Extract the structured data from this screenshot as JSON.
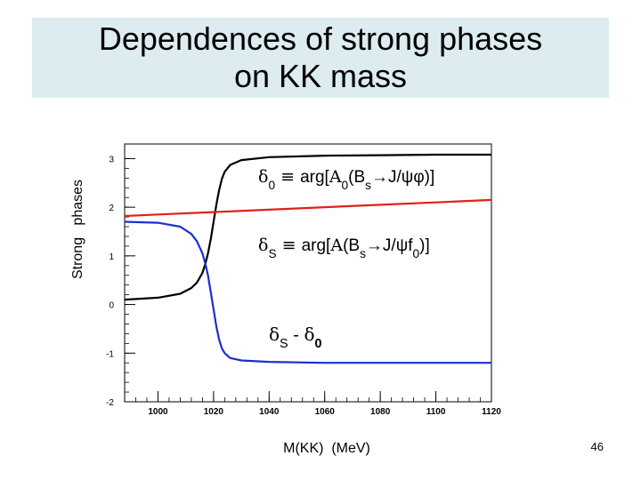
{
  "slide": {
    "title_line1": "Dependences of strong phases",
    "title_line2": "on KK mass",
    "page_number": "46"
  },
  "chart_data": {
    "type": "line",
    "ylabel": "Strong   phases",
    "xlabel": "M(KK)  (MeV)",
    "xlim": [
      988,
      1120
    ],
    "ylim": [
      -2,
      3.3
    ],
    "xticks": [
      "1000",
      "1020",
      "1040",
      "1060",
      "1080",
      "1100",
      "1120"
    ],
    "yticks": [
      "-2",
      "-1",
      "0",
      "1",
      "2",
      "3"
    ],
    "colors": {
      "black": "#000000",
      "red": "#e0201a",
      "blue": "#1a2fd0"
    },
    "series": [
      {
        "color_key": "black",
        "x": [
          988,
          1000,
          1008,
          1012,
          1014,
          1016,
          1017,
          1018,
          1019,
          1020,
          1021,
          1022,
          1023,
          1024,
          1026,
          1030,
          1040,
          1060,
          1080,
          1100,
          1120
        ],
        "y": [
          0.1,
          0.14,
          0.22,
          0.34,
          0.45,
          0.65,
          0.83,
          1.05,
          1.35,
          1.7,
          2.05,
          2.35,
          2.58,
          2.73,
          2.87,
          2.97,
          3.03,
          3.06,
          3.07,
          3.08,
          3.08
        ]
      },
      {
        "color_key": "red",
        "x": [
          988,
          1000,
          1020,
          1040,
          1060,
          1080,
          1100,
          1120
        ],
        "y": [
          1.82,
          1.85,
          1.9,
          1.95,
          2.0,
          2.05,
          2.1,
          2.15
        ]
      },
      {
        "color_key": "blue",
        "x": [
          988,
          1000,
          1008,
          1012,
          1014,
          1016,
          1017,
          1018,
          1019,
          1020,
          1021,
          1022,
          1023,
          1024,
          1026,
          1030,
          1040,
          1060,
          1080,
          1100,
          1120
        ],
        "y": [
          1.7,
          1.68,
          1.6,
          1.45,
          1.3,
          1.05,
          0.85,
          0.6,
          0.25,
          -0.1,
          -0.45,
          -0.72,
          -0.9,
          -1.0,
          -1.1,
          -1.15,
          -1.18,
          -1.2,
          -1.2,
          -1.2,
          -1.2
        ]
      }
    ],
    "annotations": {
      "a1": {
        "delta": "δ",
        "sub": "0",
        "equiv": " ≡ ",
        "arg": "arg[",
        "amp": "A",
        "amp_sub": "0",
        "open": "(",
        "b": "B",
        "b_sub": "s",
        "rest": "→J/ψφ)]"
      },
      "a2": {
        "delta": "δ",
        "sub": "S",
        "equiv": " ≡ ",
        "arg": "arg[",
        "amp": "A",
        "open": "(",
        "b": "B",
        "b_sub": "s",
        "rest": "→J/ψf",
        "f_sub": "0",
        "close": ")]"
      },
      "a3": {
        "delta": "δ",
        "sub": "S",
        "minus": " - ",
        "delta2": "δ",
        "sub2": "0"
      }
    }
  }
}
